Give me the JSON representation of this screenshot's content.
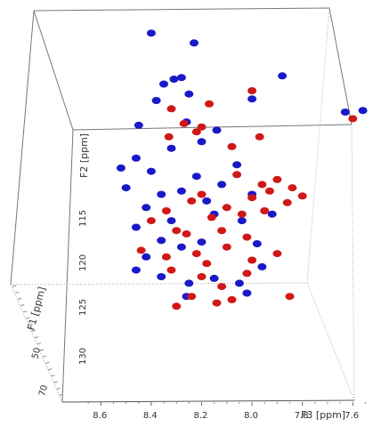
{
  "chart_data": {
    "type": "scatter",
    "axes": {
      "x": {
        "label": "F3 [ppm]",
        "ticks": [
          "8.6",
          "8.4",
          "8.2",
          "8.0",
          "7.8",
          "7.6"
        ],
        "range": [
          8.7,
          7.45
        ]
      },
      "y": {
        "label": "F2 [ppm]",
        "ticks": [
          "115",
          "120",
          "125",
          "130"
        ]
      },
      "z": {
        "label": "F1 [ppm]",
        "ticks": [
          "50",
          "70"
        ]
      }
    },
    "grid": false,
    "colors": {
      "series_a": "#1919c8",
      "series_b": "#d01818",
      "frame": "#777777"
    },
    "series": [
      {
        "color_key": "series_a",
        "points": [
          [
            8.4,
            4.4
          ],
          [
            8.23,
            4.1
          ],
          [
            8.31,
            3.0
          ],
          [
            8.28,
            3.05
          ],
          [
            8.35,
            2.85
          ],
          [
            8.25,
            2.55
          ],
          [
            8.38,
            2.35
          ],
          [
            7.88,
            3.1
          ],
          [
            8.0,
            2.4
          ],
          [
            7.63,
            2.0
          ],
          [
            7.56,
            2.05
          ],
          [
            8.45,
            1.6
          ],
          [
            8.26,
            1.7
          ],
          [
            8.14,
            1.45
          ],
          [
            8.2,
            1.1
          ],
          [
            8.32,
            0.9
          ],
          [
            8.46,
            0.6
          ],
          [
            8.52,
            0.3
          ],
          [
            8.4,
            0.2
          ],
          [
            8.22,
            0.05
          ],
          [
            8.06,
            0.4
          ],
          [
            8.5,
            -0.3
          ],
          [
            8.36,
            -0.5
          ],
          [
            8.12,
            -0.2
          ],
          [
            8.28,
            -0.4
          ],
          [
            8.18,
            -0.7
          ],
          [
            8.0,
            -0.5
          ],
          [
            8.42,
            -0.9
          ],
          [
            8.32,
            -1.3
          ],
          [
            8.46,
            -1.5
          ],
          [
            8.15,
            -1.1
          ],
          [
            8.04,
            -1.3
          ],
          [
            7.92,
            -1.1
          ],
          [
            8.36,
            -1.9
          ],
          [
            8.28,
            -2.1
          ],
          [
            8.42,
            -2.4
          ],
          [
            8.2,
            -1.95
          ],
          [
            7.98,
            -2.0
          ],
          [
            8.36,
            -3.0
          ],
          [
            8.25,
            -3.2
          ],
          [
            8.15,
            -3.05
          ],
          [
            8.05,
            -3.2
          ],
          [
            8.46,
            -2.8
          ],
          [
            8.26,
            -3.6
          ],
          [
            8.02,
            -3.5
          ],
          [
            7.96,
            -2.7
          ]
        ]
      },
      {
        "color_key": "series_b",
        "points": [
          [
            8.0,
            2.65
          ],
          [
            8.17,
            2.25
          ],
          [
            8.32,
            2.1
          ],
          [
            8.2,
            1.55
          ],
          [
            8.27,
            1.65
          ],
          [
            8.22,
            1.4
          ],
          [
            8.33,
            1.25
          ],
          [
            7.97,
            1.25
          ],
          [
            8.08,
            0.95
          ],
          [
            7.6,
            1.8
          ],
          [
            8.06,
            0.1
          ],
          [
            7.96,
            -0.2
          ],
          [
            7.9,
            -0.05
          ],
          [
            7.84,
            -0.3
          ],
          [
            7.93,
            -0.4
          ],
          [
            7.8,
            -0.55
          ],
          [
            7.86,
            -0.75
          ],
          [
            8.0,
            -0.6
          ],
          [
            8.2,
            -0.5
          ],
          [
            8.24,
            -0.7
          ],
          [
            8.1,
            -0.9
          ],
          [
            8.16,
            -1.2
          ],
          [
            8.04,
            -1.1
          ],
          [
            7.95,
            -1.0
          ],
          [
            8.34,
            -1.0
          ],
          [
            8.4,
            -1.3
          ],
          [
            8.3,
            -1.6
          ],
          [
            8.12,
            -1.6
          ],
          [
            8.26,
            -1.7
          ],
          [
            8.02,
            -1.8
          ],
          [
            8.1,
            -2.1
          ],
          [
            8.22,
            -2.3
          ],
          [
            8.44,
            -2.2
          ],
          [
            8.34,
            -2.4
          ],
          [
            8.18,
            -2.6
          ],
          [
            8.0,
            -2.5
          ],
          [
            7.9,
            -2.3
          ],
          [
            8.32,
            -2.8
          ],
          [
            8.2,
            -3.0
          ],
          [
            8.12,
            -3.3
          ],
          [
            8.24,
            -3.6
          ],
          [
            8.14,
            -3.8
          ],
          [
            8.3,
            -3.9
          ],
          [
            8.08,
            -3.7
          ],
          [
            7.85,
            -3.6
          ],
          [
            8.02,
            -2.9
          ]
        ]
      }
    ]
  }
}
